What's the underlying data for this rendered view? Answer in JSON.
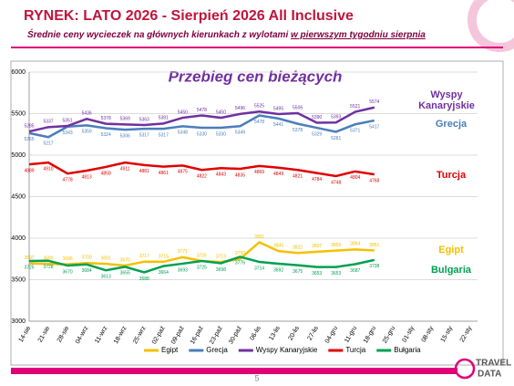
{
  "header": {
    "title": "RYNEK: LATO 2026 - Sierpień 2026 All Inclusive",
    "subtitle": "Średnie ceny wycieczek na głównych kierunkach  z wylotami ",
    "subtitle_underlined": "w pierwszym tygodniu sierpnia"
  },
  "chart_data": {
    "type": "line",
    "title": "Przebieg cen bieżących",
    "categories": [
      "14-sie",
      "21-sie",
      "28-sie",
      "04-wrz",
      "11-wrz",
      "18-wrz",
      "25-wrz",
      "02-paź",
      "09-paź",
      "16-paź",
      "23-paź",
      "30-paź",
      "06-lis",
      "13-lis",
      "20-lis",
      "27-lis",
      "04-gru",
      "11-gru",
      "18-gru",
      "25-gru",
      "01-sty",
      "08-sty",
      "15-sty",
      "22-sty"
    ],
    "series": [
      {
        "name": "Egipt",
        "color": "#f5c000",
        "values": [
          3697,
          3690,
          3686,
          3700,
          3691,
          3670,
          3717,
          3715,
          3771,
          3725,
          3713,
          3750,
          3951,
          3845,
          3822,
          3837,
          3850,
          3864,
          3851,
          null,
          null,
          null,
          null,
          null
        ]
      },
      {
        "name": "Grecja",
        "color": "#4a7ebb",
        "values": [
          5265,
          5217,
          5343,
          5359,
          5324,
          5306,
          5317,
          5317,
          5348,
          5330,
          5330,
          5349,
          5478,
          5441,
          5378,
          5329,
          5281,
          5371,
          5417,
          null,
          null,
          null,
          null,
          null
        ]
      },
      {
        "name": "Wyspy Kanaryjskie",
        "color": "#7030a0",
        "values": [
          5285,
          5337,
          5351,
          5436,
          5378,
          5369,
          5363,
          5381,
          5450,
          5478,
          5450,
          5496,
          5525,
          5495,
          5506,
          5390,
          5393,
          5521,
          5574,
          null,
          null,
          null,
          null,
          null
        ]
      },
      {
        "name": "Turcja",
        "color": "#e00000",
        "values": [
          4889,
          4910,
          4778,
          4813,
          4858,
          4911,
          4881,
          4861,
          4875,
          4822,
          4843,
          4835,
          4869,
          4849,
          4821,
          4784,
          4748,
          4804,
          4768,
          null,
          null,
          null,
          null,
          null
        ]
      },
      {
        "name": "Bułgaria",
        "color": "#00a050",
        "values": [
          3725,
          3728,
          3670,
          3684,
          3613,
          3655,
          3588,
          3664,
          3693,
          3725,
          3698,
          3776,
          3714,
          3692,
          3675,
          3653,
          3653,
          3687,
          3738,
          null,
          null,
          null,
          null,
          null
        ]
      }
    ],
    "series_labels": [
      "Egipt",
      "Grecja",
      "Wyspy Kanaryjskie",
      "Turcja",
      "Bulgaria"
    ],
    "ylim": [
      3000,
      6000
    ],
    "yticks": [
      3000,
      3500,
      4000,
      4500,
      5000,
      5500,
      6000
    ],
    "grid": true,
    "legend": "bottom"
  },
  "footer": {
    "page": "5",
    "logo_top": "TRAVEL",
    "logo_bottom": "DATA"
  }
}
